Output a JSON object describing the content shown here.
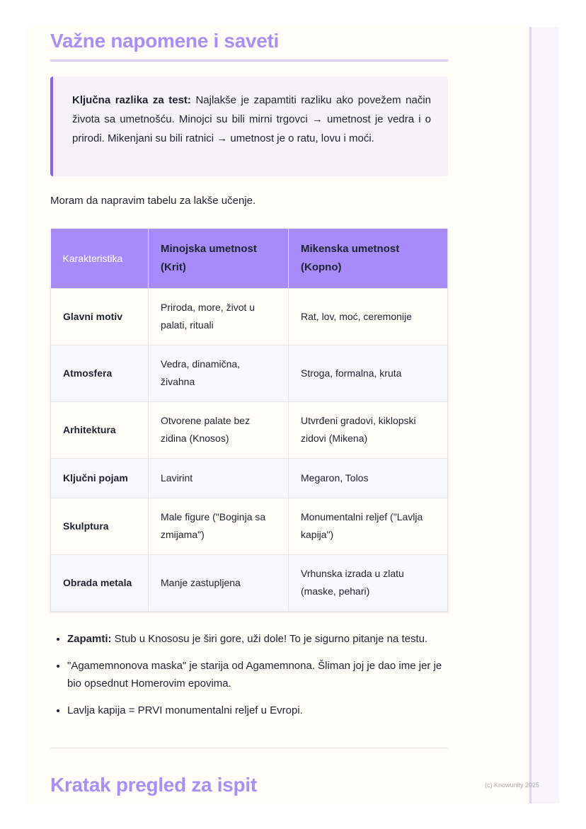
{
  "heading1": "Važne napomene i saveti",
  "callout": {
    "bold": "Ključna razlika za test:",
    "text": " Najlakše je zapamtiti razliku ako povežem način života sa umetnošću. Minojci su bili mirni trgovci → umetnost je vedra i o prirodi. Mikenjani su bili ratnici → umetnost je o ratu, lovu i moći."
  },
  "intro": "Moram da napravim tabelu za lakše učenje.",
  "table": {
    "headers": [
      "Karakteristika",
      "Minojska umetnost (Krit)",
      "Mikenska umetnost (Kopno)"
    ],
    "rows": [
      [
        "Glavni motiv",
        "Priroda, more, život u palati, rituali",
        "Rat, lov, moć, ceremonije"
      ],
      [
        "Atmosfera",
        "Vedra, dinamična, živahna",
        "Stroga, formalna, kruta"
      ],
      [
        "Arhitektura",
        "Otvorene palate bez zidina (Knosos)",
        "Utvrđeni gradovi, kiklopski zidovi (Mikena)"
      ],
      [
        "Ključni pojam",
        "Lavirint",
        "Megaron, Tolos"
      ],
      [
        "Skulptura",
        "Male figure (\"Boginja sa zmijama\")",
        "Monumentalni reljef (\"Lavlja kapija\")"
      ],
      [
        "Obrada metala",
        "Manje zastupljena",
        "Vrhunska izrada u zlatu (maske, pehari)"
      ]
    ]
  },
  "bullets": [
    {
      "bold": "Zapamti:",
      "text": " Stub u Knososu je širi gore, uži dole! To je sigurno pitanje na testu."
    },
    {
      "bold": "",
      "text": "\"Agamemnonova maska\" je starija od Agamemnona. Šliman joj je dao ime jer je bio opsednut Homerovim epovima."
    },
    {
      "bold": "",
      "text": "Lavlja kapija = PRVI monumentalni reljef u Evropi."
    }
  ],
  "heading2": "Kratak pregled za ispit",
  "copyright": "(c) Knowunity 2025",
  "colors": {
    "accent": "#a78bfa",
    "callout_border": "#8b63ee"
  }
}
